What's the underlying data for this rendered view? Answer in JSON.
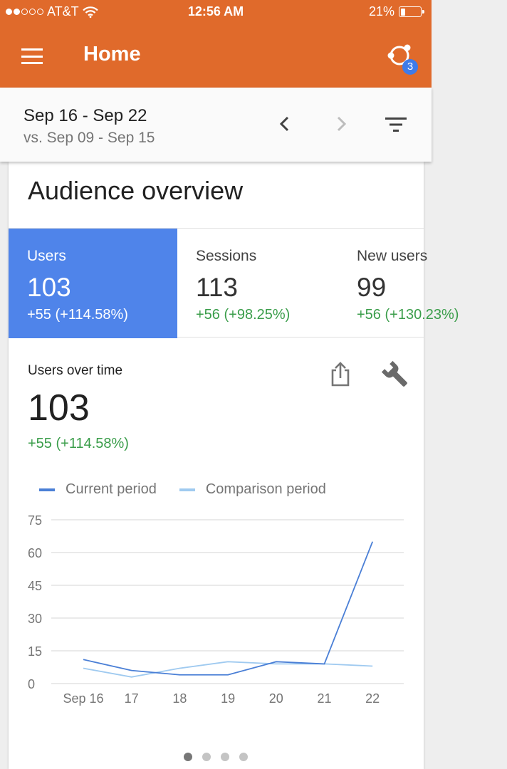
{
  "status_bar": {
    "carrier": "AT&T",
    "time": "12:56 AM",
    "battery": "21%",
    "battery_level": 0.21
  },
  "app_bar": {
    "title": "Home",
    "badge_count": "3"
  },
  "date_bar": {
    "range": "Sep 16 - Sep 22",
    "comparison": "vs. Sep 09 - Sep 15"
  },
  "card": {
    "title": "Audience overview",
    "metrics": [
      {
        "label": "Users",
        "value": "103",
        "delta": "+55 (+114.58%)"
      },
      {
        "label": "Sessions",
        "value": "113",
        "delta": "+56 (+98.25%)"
      },
      {
        "label": "New users",
        "value": "99",
        "delta": "+56 (+130.23%)"
      }
    ],
    "users_over_time": {
      "title": "Users over time",
      "value": "103",
      "delta": "+55 (+114.58%)"
    }
  },
  "colors": {
    "brand": "#e06a2b",
    "accent": "#4f84ea",
    "current": "#4a7fd6",
    "comparison": "#9fcaf0",
    "positive": "#3a9d4a"
  },
  "chart_data": {
    "type": "line",
    "x": [
      "Sep 16",
      "17",
      "18",
      "19",
      "20",
      "21",
      "22"
    ],
    "series": [
      {
        "name": "Current period",
        "values": [
          11,
          6,
          4,
          4,
          10,
          9,
          65
        ]
      },
      {
        "name": "Comparison period",
        "values": [
          7,
          3,
          7,
          10,
          9,
          9,
          8
        ]
      }
    ],
    "yticks": [
      0,
      15,
      30,
      45,
      60,
      75
    ],
    "ylim": [
      0,
      75
    ],
    "grid": true,
    "legend": "top"
  },
  "pager": {
    "count": 4,
    "active": 0
  }
}
